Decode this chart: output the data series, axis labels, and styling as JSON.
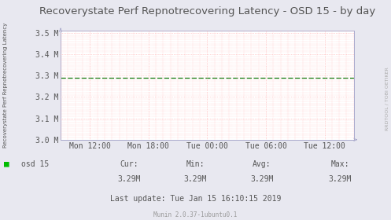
{
  "title": "Recoverystate Perf Repnotrecovering Latency - OSD 15 - by day",
  "ylabel": "Recoverystate Perf Repnotrecovering Latency",
  "right_label": "RRDTOOL / TOBI OETIKER",
  "background_color": "#e8e8f0",
  "plot_bg_color": "#ffffff",
  "line_color": "#007700",
  "line_value": 3.29,
  "ylim_min": 3.0,
  "ylim_max": 3.5,
  "ytick_vals": [
    3.0,
    3.1,
    3.2,
    3.3,
    3.4,
    3.5
  ],
  "ytick_labels": [
    "3.0 M",
    "3.1 M",
    "3.2 M",
    "3.3 M",
    "3.4 M",
    "3.5 M"
  ],
  "xtick_labels": [
    "Mon 12:00",
    "Mon 18:00",
    "Tue 00:00",
    "Tue 06:00",
    "Tue 12:00"
  ],
  "grid_color": "#ffaaaa",
  "border_color": "#aaaacc",
  "text_color": "#555555",
  "legend_label": "osd 15",
  "legend_color": "#00bb00",
  "cur_val": "3.29M",
  "min_val": "3.29M",
  "avg_val": "3.29M",
  "max_val": "3.29M",
  "last_update": "Last update: Tue Jan 15 16:10:15 2019",
  "munin_text": "Munin 2.0.37-1ubuntu0.1",
  "title_fontsize": 9.5,
  "axis_fontsize": 7,
  "small_fontsize": 5.5,
  "figsize": [
    4.97,
    2.8
  ],
  "dpi": 100
}
